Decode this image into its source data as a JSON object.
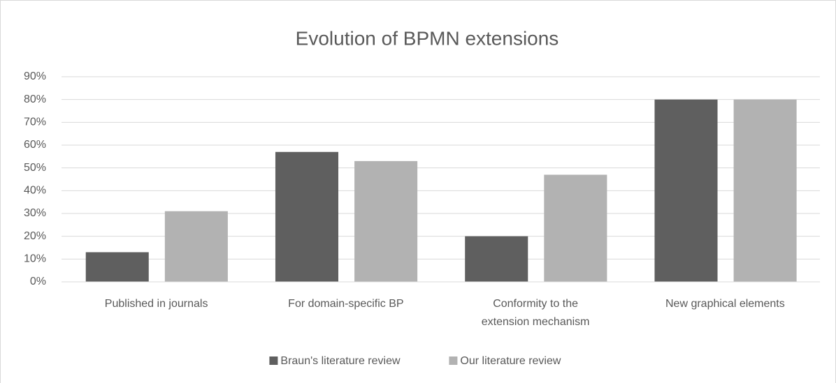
{
  "chart_data": {
    "type": "bar",
    "title": "Evolution of BPMN extensions",
    "categories": [
      "Published in journals",
      "For domain-specific BP",
      "Conformity to the extension mechanism",
      "New graphical elements"
    ],
    "series": [
      {
        "name": "Braun's literature review",
        "color": "#5f5f5f",
        "values": [
          13,
          57,
          20,
          80
        ]
      },
      {
        "name": "Our literature review",
        "color": "#b2b2b2",
        "values": [
          31,
          53,
          47,
          80
        ]
      }
    ],
    "ylim": [
      0,
      90
    ],
    "yticks": [
      {
        "value": 0,
        "label": "0%"
      },
      {
        "value": 10,
        "label": "10%"
      },
      {
        "value": 20,
        "label": "20%"
      },
      {
        "value": 30,
        "label": "30%"
      },
      {
        "value": 40,
        "label": "40%"
      },
      {
        "value": 50,
        "label": "50%"
      },
      {
        "value": 60,
        "label": "60%"
      },
      {
        "value": 70,
        "label": "70%"
      },
      {
        "value": 80,
        "label": "80%"
      },
      {
        "value": 90,
        "label": "90%"
      }
    ],
    "grid": true,
    "legend": "bottom"
  }
}
